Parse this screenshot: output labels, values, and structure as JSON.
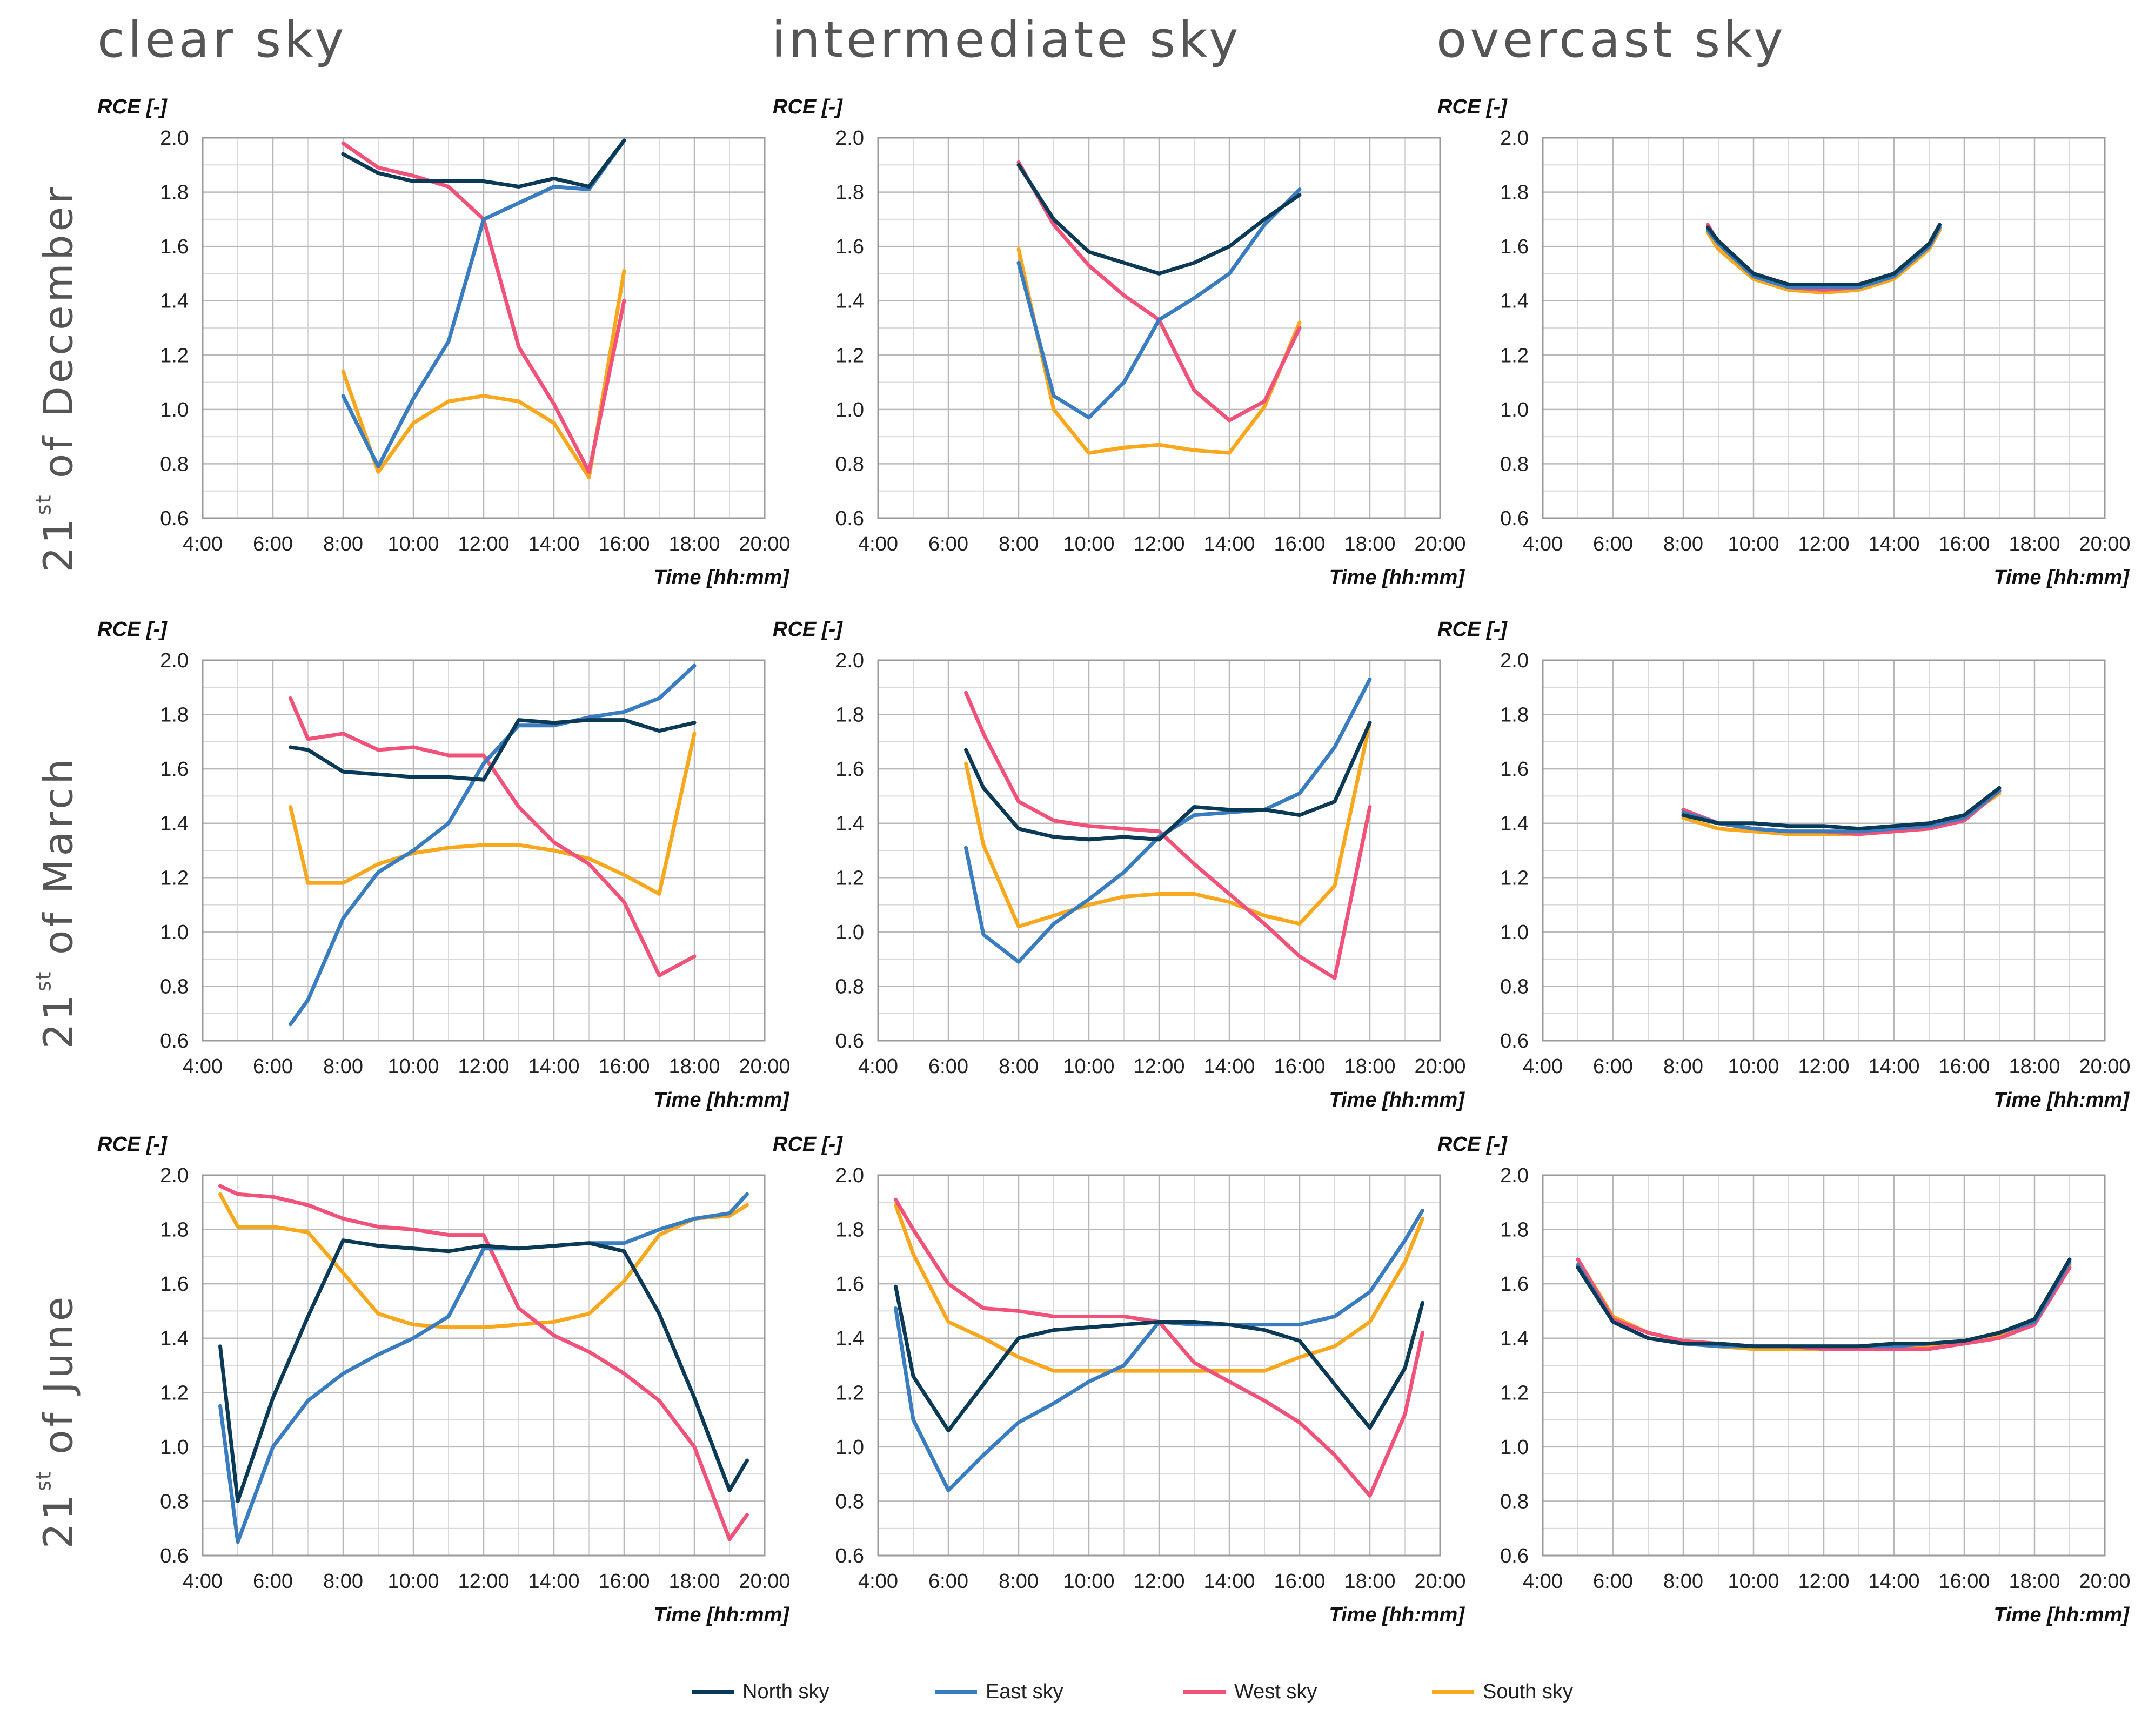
{
  "legend": {
    "north": {
      "label": "North sky",
      "color": "#0b3a57"
    },
    "east": {
      "label": "East sky",
      "color": "#3a7cc0"
    },
    "west": {
      "label": "West sky",
      "color": "#f0527a"
    },
    "south": {
      "label": "South sky",
      "color": "#f8a81e"
    }
  },
  "columns": [
    "clear sky",
    "intermediate sky",
    "overcast sky"
  ],
  "rows": [
    {
      "prefix": "21",
      "sup": "st",
      "suffix": " of December"
    },
    {
      "prefix": "21",
      "sup": "st",
      "suffix": " of March"
    },
    {
      "prefix": "21",
      "sup": "st",
      "suffix": " of June"
    }
  ],
  "chart_data": [
    {
      "type": "line",
      "row": 0,
      "col": 0,
      "ylabel": "RCE [-]",
      "xlabel": "Time [hh:mm]",
      "x_unit": "hours",
      "xlim": [
        4,
        20
      ],
      "ylim": [
        0.6,
        2.0
      ],
      "xticks": [
        "4:00",
        "6:00",
        "8:00",
        "10:00",
        "12:00",
        "14:00",
        "16:00",
        "18:00",
        "20:00"
      ],
      "yticks": [
        "0.6",
        "0.8",
        "1.0",
        "1.2",
        "1.4",
        "1.6",
        "1.8",
        "2.0"
      ],
      "grid": true,
      "x": [
        8,
        9,
        10,
        11,
        12,
        13,
        14,
        15,
        16
      ],
      "series": [
        {
          "key": "north",
          "values": [
            1.94,
            1.87,
            1.84,
            1.84,
            1.84,
            1.82,
            1.85,
            1.82,
            1.99
          ]
        },
        {
          "key": "east",
          "values": [
            1.05,
            0.79,
            1.04,
            1.25,
            1.7,
            1.76,
            1.82,
            1.81,
            1.99
          ]
        },
        {
          "key": "west",
          "values": [
            1.98,
            1.89,
            1.86,
            1.82,
            1.7,
            1.23,
            1.02,
            0.77,
            1.4
          ]
        },
        {
          "key": "south",
          "values": [
            1.14,
            0.77,
            0.95,
            1.03,
            1.05,
            1.03,
            0.95,
            0.75,
            1.51
          ]
        }
      ]
    },
    {
      "type": "line",
      "row": 0,
      "col": 1,
      "ylabel": "RCE [-]",
      "xlabel": "Time [hh:mm]",
      "x_unit": "hours",
      "xlim": [
        4,
        20
      ],
      "ylim": [
        0.6,
        2.0
      ],
      "xticks": [
        "4:00",
        "6:00",
        "8:00",
        "10:00",
        "12:00",
        "14:00",
        "16:00",
        "18:00",
        "20:00"
      ],
      "yticks": [
        "0.6",
        "0.8",
        "1.0",
        "1.2",
        "1.4",
        "1.6",
        "1.8",
        "2.0"
      ],
      "grid": true,
      "x": [
        8,
        9,
        10,
        11,
        12,
        13,
        14,
        15,
        16
      ],
      "series": [
        {
          "key": "north",
          "values": [
            1.9,
            1.7,
            1.58,
            1.54,
            1.5,
            1.54,
            1.6,
            1.7,
            1.79
          ]
        },
        {
          "key": "east",
          "values": [
            1.54,
            1.05,
            0.97,
            1.1,
            1.33,
            1.41,
            1.5,
            1.68,
            1.81
          ]
        },
        {
          "key": "west",
          "values": [
            1.91,
            1.68,
            1.53,
            1.42,
            1.33,
            1.07,
            0.96,
            1.03,
            1.3
          ]
        },
        {
          "key": "south",
          "values": [
            1.59,
            1.0,
            0.84,
            0.86,
            0.87,
            0.85,
            0.84,
            1.01,
            1.32
          ]
        }
      ]
    },
    {
      "type": "line",
      "row": 0,
      "col": 2,
      "ylabel": "RCE [-]",
      "xlabel": "Time [hh:mm]",
      "x_unit": "hours",
      "xlim": [
        4,
        20
      ],
      "ylim": [
        0.6,
        2.0
      ],
      "xticks": [
        "4:00",
        "6:00",
        "8:00",
        "10:00",
        "12:00",
        "14:00",
        "16:00",
        "18:00",
        "20:00"
      ],
      "yticks": [
        "0.6",
        "0.8",
        "1.0",
        "1.2",
        "1.4",
        "1.6",
        "1.8",
        "2.0"
      ],
      "grid": true,
      "x": [
        8.7,
        9,
        10,
        11,
        12,
        13,
        14,
        15,
        15.3
      ],
      "series": [
        {
          "key": "north",
          "values": [
            1.67,
            1.62,
            1.5,
            1.46,
            1.46,
            1.46,
            1.5,
            1.61,
            1.68
          ]
        },
        {
          "key": "east",
          "values": [
            1.66,
            1.61,
            1.49,
            1.45,
            1.45,
            1.45,
            1.49,
            1.6,
            1.67
          ]
        },
        {
          "key": "west",
          "values": [
            1.68,
            1.61,
            1.49,
            1.45,
            1.44,
            1.45,
            1.49,
            1.6,
            1.67
          ]
        },
        {
          "key": "south",
          "values": [
            1.65,
            1.59,
            1.48,
            1.44,
            1.43,
            1.44,
            1.48,
            1.59,
            1.66
          ]
        }
      ]
    },
    {
      "type": "line",
      "row": 1,
      "col": 0,
      "ylabel": "RCE [-]",
      "xlabel": "Time [hh:mm]",
      "x_unit": "hours",
      "xlim": [
        4,
        20
      ],
      "ylim": [
        0.6,
        2.0
      ],
      "xticks": [
        "4:00",
        "6:00",
        "8:00",
        "10:00",
        "12:00",
        "14:00",
        "16:00",
        "18:00",
        "20:00"
      ],
      "yticks": [
        "0.6",
        "0.8",
        "1.0",
        "1.2",
        "1.4",
        "1.6",
        "1.8",
        "2.0"
      ],
      "grid": true,
      "x": [
        6.5,
        7,
        8,
        9,
        10,
        11,
        12,
        13,
        14,
        15,
        16,
        17,
        18
      ],
      "series": [
        {
          "key": "north",
          "values": [
            1.68,
            1.67,
            1.59,
            1.58,
            1.57,
            1.57,
            1.56,
            1.78,
            1.77,
            1.78,
            1.78,
            1.74,
            1.77
          ]
        },
        {
          "key": "east",
          "values": [
            0.66,
            0.75,
            1.05,
            1.22,
            1.3,
            1.4,
            1.62,
            1.76,
            1.76,
            1.79,
            1.81,
            1.86,
            1.98
          ]
        },
        {
          "key": "west",
          "values": [
            1.86,
            1.71,
            1.73,
            1.67,
            1.68,
            1.65,
            1.65,
            1.46,
            1.33,
            1.25,
            1.11,
            0.84,
            0.91
          ]
        },
        {
          "key": "south",
          "values": [
            1.46,
            1.18,
            1.18,
            1.25,
            1.29,
            1.31,
            1.32,
            1.32,
            1.3,
            1.27,
            1.21,
            1.14,
            1.73
          ]
        }
      ]
    },
    {
      "type": "line",
      "row": 1,
      "col": 1,
      "ylabel": "RCE [-]",
      "xlabel": "Time [hh:mm]",
      "x_unit": "hours",
      "xlim": [
        4,
        20
      ],
      "ylim": [
        0.6,
        2.0
      ],
      "xticks": [
        "4:00",
        "6:00",
        "8:00",
        "10:00",
        "12:00",
        "14:00",
        "16:00",
        "18:00",
        "20:00"
      ],
      "yticks": [
        "0.6",
        "0.8",
        "1.0",
        "1.2",
        "1.4",
        "1.6",
        "1.8",
        "2.0"
      ],
      "grid": true,
      "x": [
        6.5,
        7,
        8,
        9,
        10,
        11,
        12,
        13,
        14,
        15,
        16,
        17,
        18
      ],
      "series": [
        {
          "key": "north",
          "values": [
            1.67,
            1.53,
            1.38,
            1.35,
            1.34,
            1.35,
            1.34,
            1.46,
            1.45,
            1.45,
            1.43,
            1.48,
            1.77
          ]
        },
        {
          "key": "east",
          "values": [
            1.31,
            0.99,
            0.89,
            1.03,
            1.12,
            1.22,
            1.35,
            1.43,
            1.44,
            1.45,
            1.51,
            1.68,
            1.93
          ]
        },
        {
          "key": "west",
          "values": [
            1.88,
            1.73,
            1.48,
            1.41,
            1.39,
            1.38,
            1.37,
            1.25,
            1.14,
            1.03,
            0.91,
            0.83,
            1.46
          ]
        },
        {
          "key": "south",
          "values": [
            1.62,
            1.32,
            1.02,
            1.06,
            1.1,
            1.13,
            1.14,
            1.14,
            1.11,
            1.06,
            1.03,
            1.17,
            1.77
          ]
        }
      ]
    },
    {
      "type": "line",
      "row": 1,
      "col": 2,
      "ylabel": "RCE [-]",
      "xlabel": "Time [hh:mm]",
      "x_unit": "hours",
      "xlim": [
        4,
        20
      ],
      "ylim": [
        0.6,
        2.0
      ],
      "xticks": [
        "4:00",
        "6:00",
        "8:00",
        "10:00",
        "12:00",
        "14:00",
        "16:00",
        "18:00",
        "20:00"
      ],
      "yticks": [
        "0.6",
        "0.8",
        "1.0",
        "1.2",
        "1.4",
        "1.6",
        "1.8",
        "2.0"
      ],
      "grid": true,
      "x": [
        8,
        9,
        10,
        11,
        12,
        13,
        14,
        15,
        16,
        17
      ],
      "series": [
        {
          "key": "north",
          "values": [
            1.43,
            1.4,
            1.4,
            1.39,
            1.39,
            1.38,
            1.39,
            1.4,
            1.43,
            1.53
          ]
        },
        {
          "key": "east",
          "values": [
            1.44,
            1.4,
            1.38,
            1.37,
            1.37,
            1.37,
            1.38,
            1.39,
            1.42,
            1.52
          ]
        },
        {
          "key": "west",
          "values": [
            1.45,
            1.4,
            1.38,
            1.37,
            1.37,
            1.36,
            1.37,
            1.38,
            1.41,
            1.52
          ]
        },
        {
          "key": "south",
          "values": [
            1.42,
            1.38,
            1.37,
            1.36,
            1.36,
            1.36,
            1.37,
            1.38,
            1.42,
            1.51
          ]
        }
      ]
    },
    {
      "type": "line",
      "row": 2,
      "col": 0,
      "ylabel": "RCE [-]",
      "xlabel": "Time [hh:mm]",
      "x_unit": "hours",
      "xlim": [
        4,
        20
      ],
      "ylim": [
        0.6,
        2.0
      ],
      "xticks": [
        "4:00",
        "6:00",
        "8:00",
        "10:00",
        "12:00",
        "14:00",
        "16:00",
        "18:00",
        "20:00"
      ],
      "yticks": [
        "0.6",
        "0.8",
        "1.0",
        "1.2",
        "1.4",
        "1.6",
        "1.8",
        "2.0"
      ],
      "grid": true,
      "x": [
        4.5,
        5,
        6,
        7,
        8,
        9,
        10,
        11,
        12,
        13,
        14,
        15,
        16,
        17,
        18,
        19,
        19.5
      ],
      "series": [
        {
          "key": "north",
          "values": [
            1.37,
            0.8,
            1.18,
            1.48,
            1.76,
            1.74,
            1.73,
            1.72,
            1.74,
            1.73,
            1.74,
            1.75,
            1.72,
            1.49,
            1.18,
            0.84,
            0.95
          ]
        },
        {
          "key": "east",
          "values": [
            1.15,
            0.65,
            1.0,
            1.17,
            1.27,
            1.34,
            1.4,
            1.48,
            1.73,
            1.73,
            1.74,
            1.75,
            1.75,
            1.8,
            1.84,
            1.86,
            1.93
          ]
        },
        {
          "key": "west",
          "values": [
            1.96,
            1.93,
            1.92,
            1.89,
            1.84,
            1.81,
            1.8,
            1.78,
            1.78,
            1.51,
            1.41,
            1.35,
            1.27,
            1.17,
            1.0,
            0.66,
            0.75
          ]
        },
        {
          "key": "south",
          "values": [
            1.93,
            1.81,
            1.81,
            1.79,
            1.64,
            1.49,
            1.45,
            1.44,
            1.44,
            1.45,
            1.46,
            1.49,
            1.61,
            1.78,
            1.84,
            1.85,
            1.89
          ]
        }
      ]
    },
    {
      "type": "line",
      "row": 2,
      "col": 1,
      "ylabel": "RCE [-]",
      "xlabel": "Time [hh:mm]",
      "x_unit": "hours",
      "xlim": [
        4,
        20
      ],
      "ylim": [
        0.6,
        2.0
      ],
      "xticks": [
        "4:00",
        "6:00",
        "8:00",
        "10:00",
        "12:00",
        "14:00",
        "16:00",
        "18:00",
        "20:00"
      ],
      "yticks": [
        "0.6",
        "0.8",
        "1.0",
        "1.2",
        "1.4",
        "1.6",
        "1.8",
        "2.0"
      ],
      "grid": true,
      "x": [
        4.5,
        5,
        6,
        7,
        8,
        9,
        10,
        11,
        12,
        13,
        14,
        15,
        16,
        17,
        18,
        19,
        19.5
      ],
      "series": [
        {
          "key": "north",
          "values": [
            1.59,
            1.26,
            1.06,
            1.23,
            1.4,
            1.43,
            1.44,
            1.45,
            1.46,
            1.46,
            1.45,
            1.43,
            1.39,
            1.23,
            1.07,
            1.29,
            1.53
          ]
        },
        {
          "key": "east",
          "values": [
            1.51,
            1.1,
            0.84,
            0.97,
            1.09,
            1.16,
            1.24,
            1.3,
            1.46,
            1.45,
            1.45,
            1.45,
            1.45,
            1.48,
            1.57,
            1.76,
            1.87
          ]
        },
        {
          "key": "west",
          "values": [
            1.91,
            1.8,
            1.6,
            1.51,
            1.5,
            1.48,
            1.48,
            1.48,
            1.46,
            1.31,
            1.24,
            1.17,
            1.09,
            0.97,
            0.82,
            1.12,
            1.42
          ]
        },
        {
          "key": "south",
          "values": [
            1.89,
            1.71,
            1.46,
            1.4,
            1.33,
            1.28,
            1.28,
            1.28,
            1.28,
            1.28,
            1.28,
            1.28,
            1.33,
            1.37,
            1.46,
            1.68,
            1.84
          ]
        }
      ]
    },
    {
      "type": "line",
      "row": 2,
      "col": 2,
      "ylabel": "RCE [-]",
      "xlabel": "Time [hh:mm]",
      "x_unit": "hours",
      "xlim": [
        4,
        20
      ],
      "ylim": [
        0.6,
        2.0
      ],
      "xticks": [
        "4:00",
        "6:00",
        "8:00",
        "10:00",
        "12:00",
        "14:00",
        "16:00",
        "18:00",
        "20:00"
      ],
      "yticks": [
        "0.6",
        "0.8",
        "1.0",
        "1.2",
        "1.4",
        "1.6",
        "1.8",
        "2.0"
      ],
      "grid": true,
      "x": [
        5,
        6,
        7,
        8,
        9,
        10,
        11,
        12,
        13,
        14,
        15,
        16,
        17,
        18,
        19
      ],
      "series": [
        {
          "key": "north",
          "values": [
            1.66,
            1.46,
            1.4,
            1.38,
            1.38,
            1.37,
            1.37,
            1.37,
            1.37,
            1.38,
            1.38,
            1.39,
            1.42,
            1.47,
            1.69
          ]
        },
        {
          "key": "east",
          "values": [
            1.67,
            1.46,
            1.4,
            1.38,
            1.37,
            1.37,
            1.37,
            1.37,
            1.37,
            1.37,
            1.38,
            1.39,
            1.42,
            1.46,
            1.68
          ]
        },
        {
          "key": "west",
          "values": [
            1.69,
            1.47,
            1.42,
            1.39,
            1.38,
            1.37,
            1.37,
            1.36,
            1.36,
            1.36,
            1.36,
            1.38,
            1.4,
            1.45,
            1.66
          ]
        },
        {
          "key": "south",
          "values": [
            1.69,
            1.48,
            1.42,
            1.39,
            1.37,
            1.36,
            1.36,
            1.36,
            1.36,
            1.36,
            1.37,
            1.39,
            1.41,
            1.46,
            1.67
          ]
        }
      ]
    }
  ]
}
